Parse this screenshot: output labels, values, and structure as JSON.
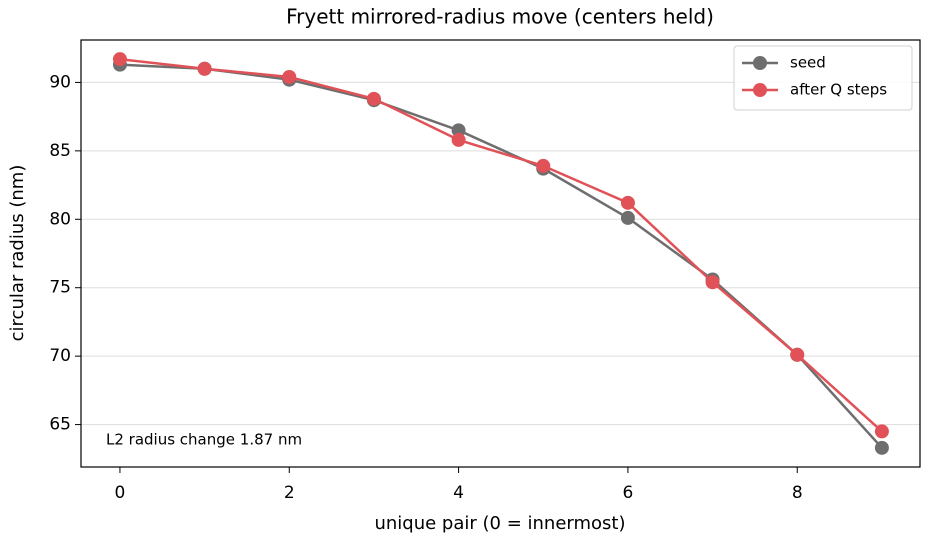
{
  "chart_data": {
    "type": "line",
    "title": "Fryett mirrored-radius move (centers held)",
    "x_label": "unique pair (0 = innermost)",
    "y_label": "circular radius (nm)",
    "annotation": "L2 radius change 1.87 nm",
    "x": [
      0,
      1,
      2,
      3,
      4,
      5,
      6,
      7,
      8,
      9
    ],
    "series": [
      {
        "name": "seed",
        "color": "#6e6e6e",
        "values": [
          91.3,
          91.0,
          90.2,
          88.7,
          86.5,
          83.7,
          80.1,
          75.6,
          70.1,
          63.3
        ]
      },
      {
        "name": "after Q steps",
        "color": "#e05257",
        "values": [
          91.7,
          91.0,
          90.4,
          88.8,
          85.8,
          83.9,
          81.2,
          75.4,
          70.1,
          64.5
        ]
      }
    ],
    "xlim": [
      -0.46,
      9.45
    ],
    "ylim": [
      61.9,
      93.1
    ],
    "xticks": [
      0,
      2,
      4,
      6,
      8
    ],
    "yticks": [
      65,
      70,
      75,
      80,
      85,
      90
    ],
    "grid": "y",
    "legend": "upper right"
  }
}
